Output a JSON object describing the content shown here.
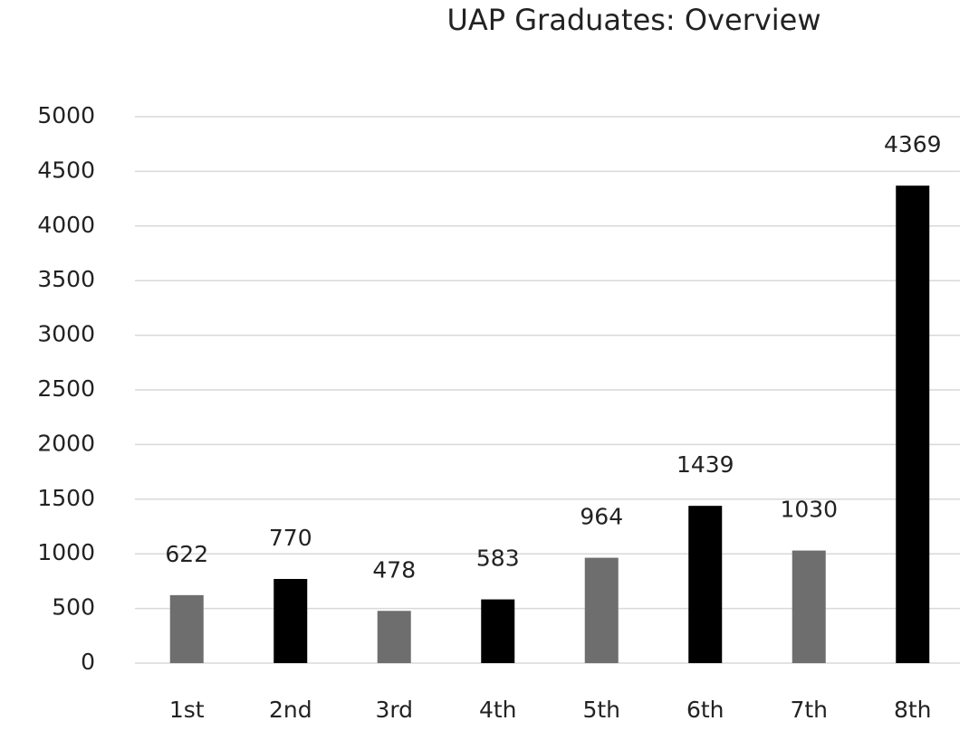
{
  "chart_data": {
    "type": "bar",
    "title": "UAP Graduates: Overview",
    "categories": [
      "1st",
      "2nd",
      "3rd",
      "4th",
      "5th",
      "6th",
      "7th",
      "8th"
    ],
    "values": [
      622,
      770,
      478,
      583,
      964,
      1439,
      1030,
      4369
    ],
    "colors": [
      "#6e6e6e",
      "#000000",
      "#6e6e6e",
      "#000000",
      "#6e6e6e",
      "#000000",
      "#6e6e6e",
      "#000000"
    ],
    "ylim": [
      0,
      5000
    ],
    "yticks": [
      0,
      500,
      1000,
      1500,
      2000,
      2500,
      3000,
      3500,
      4000,
      4500,
      5000
    ],
    "grid": true
  }
}
